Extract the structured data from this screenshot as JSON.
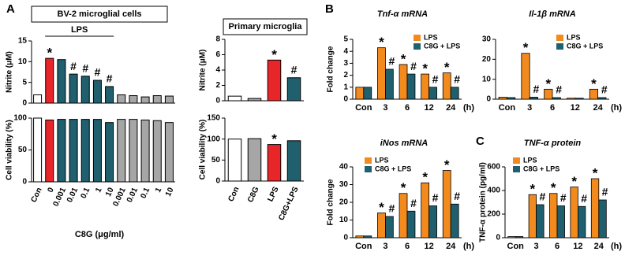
{
  "chart_data": [
    {
      "type": "bar",
      "panel": "A",
      "title": "BV-2  microglial cells",
      "bracket_label": "LPS",
      "x_label": "C8G (μg/ml)",
      "categories": [
        "Con",
        "0",
        "0.001",
        "0.01",
        "0.1",
        "1",
        "10",
        "0.001",
        "0.01",
        "0.1",
        "1",
        "10"
      ],
      "colors": [
        "#ffffff",
        "#e8262a",
        "#1f5f6e",
        "#1f5f6e",
        "#1f5f6e",
        "#1f5f6e",
        "#1f5f6e",
        "#a6a6a6",
        "#a6a6a6",
        "#a6a6a6",
        "#a6a6a6",
        "#a6a6a6"
      ],
      "subplots": [
        {
          "ylabel": "Nitrite (μM)",
          "ylim": [
            0,
            15
          ],
          "yticks": [
            0,
            5,
            10,
            15
          ],
          "values": [
            2,
            10.8,
            10.5,
            7,
            6.5,
            5.5,
            4,
            2,
            1.8,
            1.5,
            1.8,
            1.7
          ],
          "markers": [
            null,
            "*",
            null,
            "#",
            "#",
            "#",
            "#",
            null,
            null,
            null,
            null,
            null
          ]
        },
        {
          "ylabel": "Cell viability (%)",
          "ylim": [
            0,
            100
          ],
          "yticks": [
            0,
            50,
            100
          ],
          "values": [
            100,
            97,
            98,
            98,
            98,
            98,
            93,
            98,
            98,
            97,
            96,
            93
          ]
        }
      ]
    },
    {
      "type": "bar",
      "title": "Primary microglia",
      "categories": [
        "Con",
        "C8G",
        "LPS",
        "C8G+LPS"
      ],
      "colors": [
        "#ffffff",
        "#a6a6a6",
        "#e8262a",
        "#1f5f6e"
      ],
      "subplots": [
        {
          "ylabel": "Nitrite (μM)",
          "ylim": [
            0,
            8
          ],
          "yticks": [
            0,
            2,
            4,
            6,
            8
          ],
          "values": [
            0.6,
            0.3,
            5.3,
            3.0
          ],
          "markers": [
            null,
            null,
            "*",
            "#"
          ]
        },
        {
          "ylabel": "Cell viability (%)",
          "ylim": [
            0,
            150
          ],
          "yticks": [
            0,
            50,
            100,
            150
          ],
          "values": [
            100,
            101,
            87,
            96
          ],
          "markers": [
            null,
            null,
            "*",
            null
          ]
        }
      ]
    },
    {
      "type": "grouped_bar",
      "panel": "B",
      "title": "Tnf-α mRNA",
      "ylabel": "Fold change",
      "x_unit": "(h)",
      "categories": [
        "Con",
        "3",
        "6",
        "12",
        "24"
      ],
      "ylim": [
        0,
        5
      ],
      "yticks": [
        0,
        1,
        2,
        3,
        4,
        5
      ],
      "series": [
        {
          "name": "LPS",
          "color": "#f28a1e",
          "values": [
            1,
            4.3,
            2.9,
            2.1,
            2.2
          ],
          "markers": [
            null,
            "*",
            "*",
            "*",
            "*"
          ]
        },
        {
          "name": "C8G + LPS",
          "color": "#1f5f6e",
          "values": [
            1,
            2.5,
            2.1,
            1.0,
            1.0
          ],
          "markers": [
            null,
            "#",
            "#",
            "#",
            "#"
          ]
        }
      ]
    },
    {
      "type": "grouped_bar",
      "title": "Il-1β mRNA",
      "x_unit": "(h)",
      "categories": [
        "Con",
        "3",
        "6",
        "12",
        "24"
      ],
      "ylim": [
        0,
        30
      ],
      "yticks": [
        0,
        10,
        20,
        30
      ],
      "series": [
        {
          "name": "LPS",
          "color": "#f28a1e",
          "values": [
            1,
            23,
            5,
            0.5,
            5
          ],
          "markers": [
            null,
            "*",
            "*",
            null,
            "*"
          ]
        },
        {
          "name": "C8G + LPS",
          "color": "#1f5f6e",
          "values": [
            0.8,
            1.0,
            0.8,
            0.5,
            0.8
          ],
          "markers": [
            null,
            "#",
            "#",
            null,
            "#"
          ]
        }
      ]
    },
    {
      "type": "grouped_bar",
      "title": "iNos mRNA",
      "ylabel": "Fold change",
      "x_unit": "(h)",
      "categories": [
        "Con",
        "3",
        "6",
        "12",
        "24"
      ],
      "ylim": [
        0,
        40
      ],
      "yticks": [
        0,
        10,
        20,
        30,
        40
      ],
      "series": [
        {
          "name": "LPS",
          "color": "#f28a1e",
          "values": [
            1,
            14,
            25,
            31,
            38
          ],
          "markers": [
            null,
            "*",
            "*",
            "*",
            "*"
          ]
        },
        {
          "name": "C8G + LPS",
          "color": "#1f5f6e",
          "values": [
            1,
            12,
            15,
            18,
            19
          ],
          "markers": [
            null,
            "#",
            "#",
            "#",
            "#"
          ]
        }
      ]
    },
    {
      "type": "grouped_bar",
      "panel": "C",
      "title": "TNF-α protein",
      "ylabel": "TNF-α protein (pg/ml)",
      "x_unit": "(h)",
      "categories": [
        "Con",
        "3",
        "6",
        "12",
        "24"
      ],
      "ylim": [
        0,
        600
      ],
      "yticks": [
        0,
        200,
        400,
        600
      ],
      "series": [
        {
          "name": "LPS",
          "color": "#f28a1e",
          "values": [
            10,
            365,
            375,
            430,
            500
          ],
          "markers": [
            null,
            "*",
            "*",
            "*",
            "*"
          ]
        },
        {
          "name": "C8G + LPS",
          "color": "#1f5f6e",
          "values": [
            10,
            280,
            270,
            265,
            320
          ],
          "markers": [
            null,
            "#",
            "#",
            "#",
            "#"
          ]
        }
      ]
    }
  ]
}
